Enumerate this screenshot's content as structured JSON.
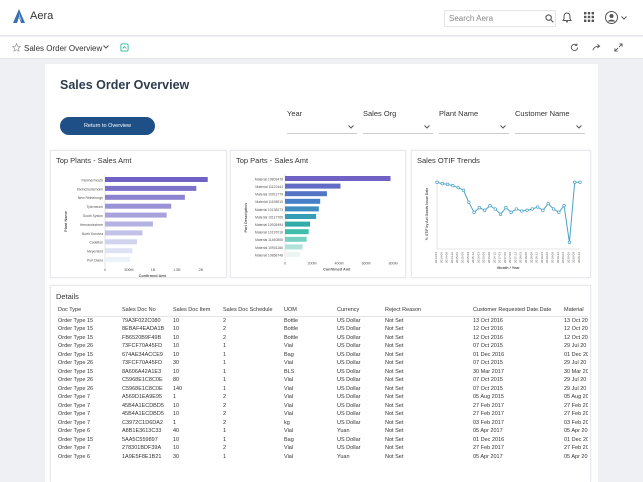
{
  "app": {
    "name": "Aera",
    "search_placeholder": "Search Aera"
  },
  "subbar": {
    "title": "Sales Order Overview"
  },
  "page": {
    "title": "Sales Order Overview",
    "return_label": "Return to Overview"
  },
  "filters": [
    {
      "label": "Year",
      "value": ""
    },
    {
      "label": "Sales Org",
      "value": ""
    },
    {
      "label": "Plant Name",
      "value": ""
    },
    {
      "label": "Customer Name",
      "value": ""
    }
  ],
  "colors": {
    "accent": "#1f4f87",
    "brand": "#3a6fb0",
    "bar_purple": "#6f62c4",
    "bar_teal": "#2bb7a3",
    "trend": "#4aa3c8"
  },
  "chart_data": [
    {
      "type": "bar",
      "orientation": "horizontal",
      "title": "Top Plants - Sales Amt",
      "xlabel": "Confirmed Amt",
      "ylabel": "Plant Name",
      "categories": [
        "Fleishermouth",
        "Kleinchesterholm",
        "New Rhineburgh",
        "Tylerneuch",
        "South Syston",
        "Hernandezhme",
        "North Dorotea",
        "Cadelton",
        "Meyerland",
        "Port Diana"
      ],
      "values": [
        2.25,
        2.0,
        1.75,
        1.45,
        1.35,
        1.05,
        0.82,
        0.7,
        0.6,
        0.55
      ],
      "ticks": [
        "0",
        "500M",
        "1B",
        "1.5B",
        "2B"
      ],
      "xlim": [
        0,
        2.3
      ]
    },
    {
      "type": "bar",
      "orientation": "horizontal",
      "title": "Top Parts - Sales Amt",
      "xlabel": "Confirmed Amt",
      "ylabel": "Part Description",
      "categories": [
        "Material 10803478",
        "Material 11122444",
        "Material 10011779",
        "Material 11198915",
        "Material 10138273",
        "Material 10117765",
        "Material 10928494",
        "Material 10197018",
        "Material 11450806",
        "Material 10901166",
        "Material 10868748"
      ],
      "values": [
        780,
        410,
        310,
        260,
        250,
        230,
        185,
        175,
        160,
        130,
        110
      ],
      "ticks": [
        "0",
        "200M",
        "400M",
        "600M",
        "800M"
      ],
      "xlim": [
        0,
        850
      ]
    },
    {
      "type": "line",
      "title": "Sales OTIF Trends",
      "xlabel": "Month / Year",
      "ylabel": "% OTIF by Act Goods Issue Date",
      "x": [
        "2014-03",
        "2014-06",
        "2014-09",
        "2014-12",
        "2015-03",
        "2015-06",
        "2015-09",
        "2015-12",
        "2016-03",
        "2016-06",
        "2016-09",
        "2016-12",
        "2017-03",
        "2017-06",
        "2017-09",
        "2017-12",
        "2018-03",
        "2018-06",
        "2018-09",
        "2018-12",
        "2019-03",
        "2019-06",
        "2019-09",
        "2019-12",
        "2020-03",
        "2020-06",
        "2020-09",
        "2020-12"
      ],
      "y": [
        100,
        98,
        97,
        95,
        92,
        88,
        70,
        55,
        62,
        58,
        65,
        60,
        52,
        62,
        55,
        60,
        57,
        58,
        60,
        63,
        58,
        68,
        60,
        55,
        65,
        10,
        100,
        100
      ],
      "ylim": [
        0,
        105
      ]
    }
  ],
  "details": {
    "title": "Details",
    "columns": [
      "Doc Type",
      "Sales Doc No",
      "Sales Doc Item",
      "Sales Doc Schedule",
      "UOM",
      "Currency",
      "Reject Reason",
      "Customer Requested Date.Date",
      "Material"
    ],
    "rows": [
      [
        "Order Type 15",
        "79A3F022C080",
        "10",
        "2",
        "Bottle",
        "US Dollar",
        "Not Set",
        "13 Oct 2016",
        "13 Oct 20"
      ],
      [
        "Order Type 15",
        "8EBAF4EADA1B",
        "10",
        "2",
        "Bottle",
        "US Dollar",
        "Not Set",
        "12 Oct 2016",
        "12 Oct 20"
      ],
      [
        "Order Type 15",
        "FB6520B9F49B",
        "10",
        "2",
        "Bottle",
        "US Dollar",
        "Not Set",
        "12 Oct 2016",
        "12 Oct 20"
      ],
      [
        "Order Type 26",
        "73FCF70A45FD",
        "10",
        "1",
        "Vial",
        "US Dollar",
        "Not Set",
        "07 Oct 2015",
        "29 Jul 20"
      ],
      [
        "Order Type 15",
        "674AE34ACCE9",
        "10",
        "1",
        "Bag",
        "US Dollar",
        "Not Set",
        "01 Dec 2016",
        "01 Dec 20"
      ],
      [
        "Order Type 26",
        "73FCF70A45FD",
        "30",
        "1",
        "Vial",
        "US Dollar",
        "Not Set",
        "07 Oct 2015",
        "29 Jul 20"
      ],
      [
        "Order Type 15",
        "8A606A42A1E3",
        "10",
        "1",
        "BLS",
        "US Dollar",
        "Not Set",
        "30 Mar 2017",
        "30 Mar 20"
      ],
      [
        "Order Type 26",
        "C5968E1C8C0E",
        "80",
        "1",
        "Vial",
        "US Dollar",
        "Not Set",
        "07 Oct 2015",
        "29 Jul 20"
      ],
      [
        "Order Type 26",
        "C5968E1C8C0E",
        "140",
        "1",
        "Vial",
        "US Dollar",
        "Not Set",
        "07 Oct 2015",
        "29 Jul 20"
      ],
      [
        "Order Type 7",
        "A569D1EA9E95",
        "1",
        "2",
        "Vial",
        "US Dollar",
        "Not Set",
        "05 Aug 2015",
        "05 Aug 20"
      ],
      [
        "Order Type 7",
        "45B4A1ECDBD5",
        "10",
        "2",
        "Vial",
        "US Dollar",
        "Not Set",
        "27 Feb 2017",
        "27 Feb 20"
      ],
      [
        "Order Type 7",
        "45B4A1ECDBD5",
        "10",
        "2",
        "Vial",
        "US Dollar",
        "Not Set",
        "27 Feb 2017",
        "27 Feb 20"
      ],
      [
        "Order Type 7",
        "C3972C1D6DA2",
        "1",
        "2",
        "kg",
        "US Dollar",
        "Not Set",
        "03 Feb 2017",
        "03 Feb 20"
      ],
      [
        "Order Type 6",
        "A8B1E3613C33",
        "40",
        "1",
        "Vial",
        "Yuan",
        "Not Set",
        "05 Apr 2017",
        "05 Apr 20"
      ],
      [
        "Order Type 15",
        "5AA5C559897",
        "10",
        "1",
        "Bag",
        "US Dollar",
        "Not Set",
        "01 Dec 2016",
        "01 Dec 20"
      ],
      [
        "Order Type 7",
        "278301BDF39A",
        "10",
        "2",
        "Vial",
        "US Dollar",
        "Not Set",
        "27 Feb 2017",
        "27 Feb 20"
      ],
      [
        "Order Type 6",
        "1A9E5F8E1B21",
        "30",
        "1",
        "Vial",
        "Yuan",
        "Not Set",
        "05 Apr 2017",
        "05 Apr 20"
      ]
    ]
  }
}
